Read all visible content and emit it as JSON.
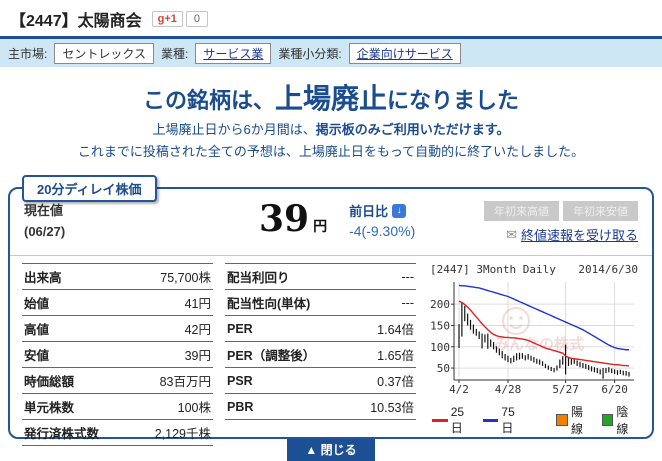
{
  "header": {
    "title": "【2447】太陽商会",
    "gplus_label": "g+1",
    "gplus_count": "0"
  },
  "infobar": {
    "market_label": "主市場:",
    "market": "セントレックス",
    "sector_label": "業種:",
    "sector": "サービス業",
    "subsector_label": "業種小分類:",
    "subsector": "企業向けサービス"
  },
  "notice": {
    "line1_pre": "この銘柄は、",
    "line1_em": "上場廃止",
    "line1_post": "になりました",
    "line2_pre": "上場廃止日から6か月間は、",
    "line2_em": "掲示板のみご利用いただけます。",
    "line3": "これまでに投稿された全ての予想は、上場廃止日をもって自動的に終了いたしました。"
  },
  "pricebox": {
    "tab": "20分ディレイ株価",
    "current_label": "現在値",
    "date": "(06/27)",
    "price": "39",
    "unit": "円",
    "change_label": "前日比",
    "down_arrow": "↓",
    "change_value": "-4(-9.30%)",
    "high_button": "年初来高値",
    "low_button": "年初来安値",
    "mail_icon": "✉",
    "alert_link": "終値速報を受け取る",
    "close_button": "▲ 閉じる"
  },
  "left_table": {
    "rows": [
      {
        "label": "出来高",
        "value": "75,700株"
      },
      {
        "label": "始値",
        "value": "41円"
      },
      {
        "label": "高値",
        "value": "42円"
      },
      {
        "label": "安値",
        "value": "39円"
      },
      {
        "label": "時価総額",
        "value": "83百万円"
      },
      {
        "label": "単元株数",
        "value": "100株"
      },
      {
        "label": "発行済株式数",
        "value": "2,129千株"
      }
    ]
  },
  "right_table": {
    "rows": [
      {
        "label": "配当利回り",
        "value": "---"
      },
      {
        "label": "配当性向(単体)",
        "value": "---"
      },
      {
        "label": "PER",
        "value": "1.64倍"
      },
      {
        "label": "PER（調整後）",
        "value": "1.65倍"
      },
      {
        "label": "PSR",
        "value": "0.37倍"
      },
      {
        "label": "PBR",
        "value": "10.53倍"
      }
    ]
  },
  "colors": {
    "accent_navy": "#24549c",
    "notice_navy": "#1a4c8f",
    "link_blue": "#1b3994",
    "change_blue": "#2e6bc4",
    "infobar_bg": "#cde7f5",
    "table_line": "#1e78c8"
  },
  "chart_data": {
    "type": "candlestick+line",
    "title": "[2447] 3Month Daily",
    "date_label": "2014/6/30",
    "watermark": "みんなの株式",
    "ylim": [
      22,
      252
    ],
    "yticks": [
      50,
      100,
      150,
      200
    ],
    "xticks": [
      {
        "index": 0,
        "label": "4/2"
      },
      {
        "index": 17,
        "label": "4/28"
      },
      {
        "index": 37,
        "label": "5/27"
      },
      {
        "index": 54,
        "label": "6/20"
      }
    ],
    "candle_color": "#111111",
    "candles": [
      [
        97,
        153
      ],
      [
        124,
        203
      ],
      [
        160,
        196
      ],
      [
        150,
        178
      ],
      [
        140,
        163
      ],
      [
        131,
        152
      ],
      [
        126,
        142
      ],
      [
        118,
        136
      ],
      [
        96,
        131
      ],
      [
        110,
        129
      ],
      [
        95,
        131
      ],
      [
        100,
        117
      ],
      [
        94,
        111
      ],
      [
        86,
        101
      ],
      [
        80,
        96
      ],
      [
        73,
        90
      ],
      [
        68,
        83
      ],
      [
        64,
        79
      ],
      [
        61,
        74
      ],
      [
        64,
        79
      ],
      [
        68,
        85
      ],
      [
        70,
        86
      ],
      [
        72,
        85
      ],
      [
        68,
        80
      ],
      [
        70,
        83
      ],
      [
        67,
        79
      ],
      [
        63,
        76
      ],
      [
        60,
        72
      ],
      [
        58,
        70
      ],
      [
        55,
        66
      ],
      [
        50,
        60
      ],
      [
        46,
        56
      ],
      [
        43,
        53
      ],
      [
        40,
        50
      ],
      [
        44,
        56
      ],
      [
        50,
        70
      ],
      [
        58,
        78
      ],
      [
        35,
        105
      ],
      [
        55,
        75
      ],
      [
        58,
        74
      ],
      [
        60,
        72
      ],
      [
        55,
        68
      ],
      [
        52,
        65
      ],
      [
        50,
        62
      ],
      [
        48,
        60
      ],
      [
        45,
        57
      ],
      [
        42,
        54
      ],
      [
        40,
        52
      ],
      [
        38,
        50
      ],
      [
        35,
        47
      ],
      [
        25,
        50
      ],
      [
        38,
        50
      ],
      [
        40,
        52
      ],
      [
        38,
        49
      ],
      [
        36,
        47
      ],
      [
        34,
        45
      ],
      [
        36,
        46
      ],
      [
        33,
        44
      ],
      [
        32,
        43
      ],
      [
        30,
        41
      ]
    ],
    "series": [
      {
        "name": "25日",
        "color": "#dd2222",
        "values": [
          207,
          204,
          199,
          193,
          186,
          178,
          170,
          162,
          154,
          147,
          140,
          134,
          129,
          126,
          124,
          123,
          122,
          122,
          121,
          121,
          120,
          119,
          118,
          117,
          115,
          112,
          109,
          106,
          103,
          100,
          97,
          95,
          93,
          91,
          89,
          87,
          85,
          78,
          75,
          73,
          72,
          71,
          70,
          69,
          68,
          67,
          66,
          65,
          64,
          63,
          62,
          61,
          60,
          59,
          58,
          58,
          57,
          56,
          56,
          55
        ]
      },
      {
        "name": "75日",
        "color": "#2233cc",
        "values": [
          244,
          243,
          243,
          242,
          241,
          240,
          239,
          238,
          236,
          234,
          232,
          230,
          228,
          226,
          224,
          222,
          220,
          218,
          215,
          212,
          209,
          206,
          203,
          200,
          197,
          194,
          191,
          188,
          185,
          182,
          179,
          176,
          173,
          170,
          167,
          164,
          161,
          158,
          155,
          152,
          149,
          146,
          143,
          140,
          136,
          132,
          128,
          124,
          120,
          116,
          112,
          108,
          104,
          101,
          98,
          96,
          95,
          94,
          93,
          93
        ]
      }
    ],
    "legend": [
      {
        "label": "25日",
        "color": "#dd2222",
        "type": "line"
      },
      {
        "label": "75日",
        "color": "#2233cc",
        "type": "line"
      },
      {
        "label": "陽線",
        "color": "#f08000",
        "type": "square"
      },
      {
        "label": "陰線",
        "color": "#27a427",
        "type": "square"
      }
    ]
  }
}
